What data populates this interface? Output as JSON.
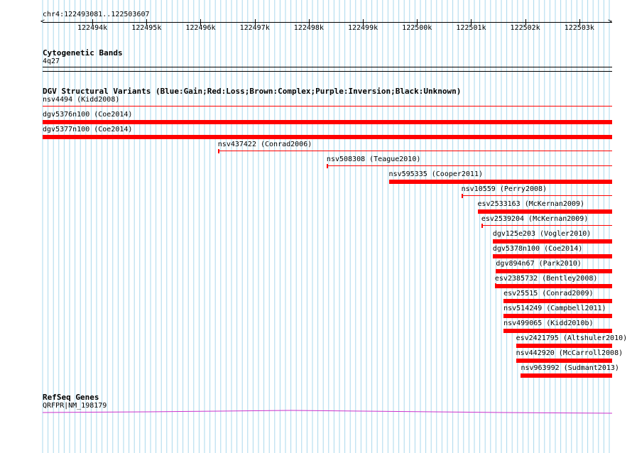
{
  "ruler": {
    "coord_label": "chr4:122493081..122503607",
    "start": 122493081,
    "end": 122503607,
    "ticks": [
      "122494k",
      "122495k",
      "122496k",
      "122497k",
      "122498k",
      "122499k",
      "122500k",
      "122501k",
      "122502k",
      "122503k"
    ]
  },
  "tracks": {
    "cytobands": {
      "title": "Cytogenetic Bands",
      "band": "4q27"
    },
    "dgv": {
      "title": "DGV Structural Variants (Blue:Gain;Red:Loss;Brown:Complex;Purple:Inversion;Black:Unknown)",
      "color": "#ff0000",
      "features": [
        {
          "label": "nsv4494 (Kidd2008)",
          "start": 122493081,
          "end": 122503607,
          "style": "thin"
        },
        {
          "label": "dgv5376n100 (Coe2014)",
          "start": 122493081,
          "end": 122503607,
          "style": "thick"
        },
        {
          "label": "dgv5377n100 (Coe2014)",
          "start": 122493081,
          "end": 122503607,
          "style": "thick"
        },
        {
          "label": "nsv437422 (Conrad2006)",
          "start": 122496320,
          "end": 122503607,
          "style": "thin"
        },
        {
          "label": "nsv508308 (Teague2010)",
          "start": 122498330,
          "end": 122503607,
          "style": "thin"
        },
        {
          "label": "nsv595335 (Cooper2011)",
          "start": 122499480,
          "end": 122503607,
          "style": "thick"
        },
        {
          "label": "nsv10559 (Perry2008)",
          "start": 122500820,
          "end": 122503607,
          "style": "thin"
        },
        {
          "label": "esv2533163 (McKernan2009)",
          "start": 122501120,
          "end": 122503607,
          "style": "thick"
        },
        {
          "label": "esv2539204 (McKernan2009)",
          "start": 122501190,
          "end": 122503607,
          "style": "thin"
        },
        {
          "label": "dgv125e203 (Vogler2010)",
          "start": 122501400,
          "end": 122503607,
          "style": "thick"
        },
        {
          "label": "dgv5378n100 (Coe2014)",
          "start": 122501400,
          "end": 122503607,
          "style": "thick"
        },
        {
          "label": "dgv894n67 (Park2010)",
          "start": 122501460,
          "end": 122503607,
          "style": "thick"
        },
        {
          "label": "esv2385732 (Bentley2008)",
          "start": 122501440,
          "end": 122503607,
          "style": "thick-tick"
        },
        {
          "label": "esv25515 (Conrad2009)",
          "start": 122501600,
          "end": 122503607,
          "style": "thick"
        },
        {
          "label": "nsv514249 (Campbell2011)",
          "start": 122501600,
          "end": 122503607,
          "style": "thick"
        },
        {
          "label": "nsv499065 (Kidd2010b)",
          "start": 122501600,
          "end": 122503607,
          "style": "thick"
        },
        {
          "label": "esv2421795 (Altshuler2010)",
          "start": 122501830,
          "end": 122503607,
          "style": "thick"
        },
        {
          "label": "nsv442920 (McCarroll2008)",
          "start": 122501830,
          "end": 122503607,
          "style": "thick"
        },
        {
          "label": "nsv963992 (Sudmant2013)",
          "start": 122501920,
          "end": 122503607,
          "style": "thick"
        }
      ]
    },
    "refseq": {
      "title": "RefSeq Genes",
      "gene": "QRFPR|NM_198179",
      "color": "#cc33cc"
    }
  }
}
